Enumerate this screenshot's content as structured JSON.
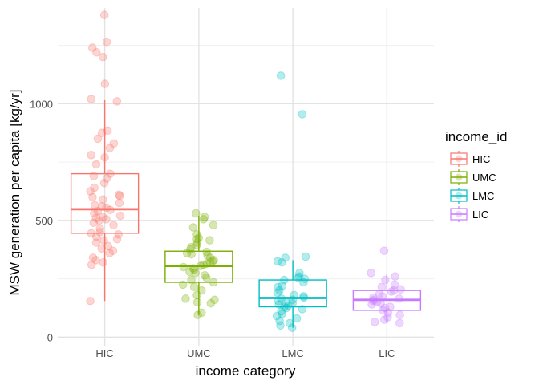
{
  "chart_data": {
    "type": "boxplot",
    "xlabel": "income category",
    "ylabel": "MSW generation per capita [kg/yr]",
    "ylim": [
      -40,
      1410
    ],
    "yticks": [
      0,
      500,
      1000
    ],
    "grid": true,
    "legend": {
      "title": "income_id",
      "placement": "right",
      "entries": [
        "HIC",
        "UMC",
        "LMC",
        "LIC"
      ]
    },
    "categories": [
      "HIC",
      "UMC",
      "LMC",
      "LIC"
    ],
    "series": [
      {
        "name": "HIC",
        "color": "#F8766D",
        "box": {
          "lower_whisker": 155,
          "q1": 445,
          "median": 548,
          "q3": 700,
          "upper_whisker": 1015
        },
        "points": [
          1380,
          1265,
          1240,
          1220,
          1200,
          1085,
          1020,
          1010,
          885,
          875,
          850,
          830,
          810,
          780,
          770,
          740,
          700,
          690,
          680,
          660,
          640,
          625,
          610,
          605,
          600,
          590,
          575,
          565,
          560,
          555,
          545,
          540,
          530,
          520,
          515,
          510,
          505,
          500,
          490,
          480,
          465,
          450,
          445,
          440,
          430,
          420,
          415,
          405,
          390,
          380,
          370,
          360,
          340,
          330,
          320,
          310,
          155
        ]
      },
      {
        "name": "UMC",
        "color": "#7CAE00",
        "box": {
          "lower_whisker": 95,
          "q1": 235,
          "median": 305,
          "q3": 368,
          "upper_whisker": 520
        },
        "points": [
          530,
          515,
          505,
          480,
          470,
          440,
          425,
          420,
          415,
          405,
          395,
          385,
          375,
          365,
          360,
          355,
          350,
          340,
          330,
          325,
          320,
          315,
          310,
          305,
          300,
          295,
          290,
          280,
          275,
          265,
          255,
          245,
          235,
          225,
          215,
          200,
          180,
          165,
          160,
          150,
          145,
          105,
          95
        ]
      },
      {
        "name": "LMC",
        "color": "#00BFC4",
        "box": {
          "lower_whisker": 40,
          "q1": 130,
          "median": 168,
          "q3": 245,
          "upper_whisker": 330
        },
        "points": [
          1120,
          955,
          345,
          340,
          325,
          320,
          275,
          260,
          255,
          250,
          245,
          235,
          220,
          215,
          200,
          190,
          180,
          175,
          170,
          165,
          160,
          155,
          150,
          145,
          140,
          135,
          130,
          125,
          120,
          110,
          100,
          90,
          80,
          70,
          60,
          50,
          40
        ]
      },
      {
        "name": "LIC",
        "color": "#C77CFF",
        "box": {
          "lower_whisker": 60,
          "q1": 115,
          "median": 160,
          "q3": 200,
          "upper_whisker": 270
        },
        "points": [
          370,
          275,
          260,
          245,
          225,
          215,
          205,
          200,
          195,
          185,
          175,
          170,
          165,
          160,
          155,
          150,
          145,
          140,
          130,
          125,
          115,
          105,
          95,
          85,
          75,
          65,
          60
        ]
      }
    ]
  }
}
